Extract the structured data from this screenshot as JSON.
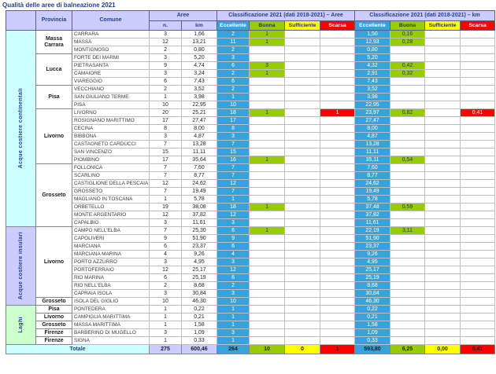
{
  "title": "Qualità delle aree di balneazione 2021",
  "colors": {
    "eccellente": "#35A3DC",
    "buona": "#99CC00",
    "sufficiente": "#FFFF00",
    "scarsa": "#FF0000",
    "header_bg": "#CCCCFF",
    "continental_bg": "#CCFFFF",
    "insular_bg": "#CCCCFF",
    "laghi_bg": "#CCFFCC",
    "totale_label_bg": "#CCFFFF",
    "navy_text": "#24418C"
  },
  "table": {
    "headers": {
      "provincia": "Provincia",
      "comune": "Comune",
      "aree_group": "Aree",
      "aree_sub": [
        "n.",
        "km"
      ],
      "class_aree_group": "Classificazione 2021 (dati 2018-2021) – Aree",
      "class_km_group": "Classificazione 2021 (dati 2018-2021) – km",
      "class_sub": [
        "Eccellente",
        "Buona",
        "Sufficiente",
        "Scarsa"
      ]
    },
    "sections": [
      {
        "name": "Acque costiere continentali",
        "bg": "#CCFFFF",
        "provinces": [
          {
            "name": "Massa Carrara",
            "rows": [
              {
                "comune": "CARRARA",
                "n": "3",
                "km": "1,66",
                "aree": [
                  "2",
                  "1",
                  "",
                  ""
                ],
                "km_class": [
                  "1,50",
                  "0,16",
                  "",
                  ""
                ]
              },
              {
                "comune": "MASSA",
                "n": "12",
                "km": "13,21",
                "aree": [
                  "11",
                  "1",
                  "",
                  ""
                ],
                "km_class": [
                  "12,93",
                  "0,28",
                  "",
                  ""
                ]
              },
              {
                "comune": "MONTIGNOSO",
                "n": "2",
                "km": "0,80",
                "aree": [
                  "2",
                  "",
                  "",
                  ""
                ],
                "km_class": [
                  "0,80",
                  "",
                  "",
                  ""
                ]
              }
            ]
          },
          {
            "name": "Lucca",
            "rows": [
              {
                "comune": "FORTE DEI MARMI",
                "n": "3",
                "km": "5,20",
                "aree": [
                  "3",
                  "",
                  "",
                  ""
                ],
                "km_class": [
                  "5,20",
                  "",
                  "",
                  ""
                ]
              },
              {
                "comune": "PIETRASANTA",
                "n": "9",
                "km": "4,74",
                "aree": [
                  "6",
                  "3",
                  "",
                  ""
                ],
                "km_class": [
                  "4,32",
                  "0,42",
                  "",
                  ""
                ]
              },
              {
                "comune": "CAMAIORE",
                "n": "3",
                "km": "3,24",
                "aree": [
                  "2",
                  "1",
                  "",
                  ""
                ],
                "km_class": [
                  "2,91",
                  "0,32",
                  "",
                  ""
                ]
              },
              {
                "comune": "VIAREGGIO",
                "n": "6",
                "km": "7,43",
                "aree": [
                  "6",
                  "",
                  "",
                  ""
                ],
                "km_class": [
                  "7,43",
                  "",
                  "",
                  ""
                ]
              }
            ]
          },
          {
            "name": "Pisa",
            "rows": [
              {
                "comune": "VECCHIANO",
                "n": "2",
                "km": "3,52",
                "aree": [
                  "2",
                  "",
                  "",
                  ""
                ],
                "km_class": [
                  "3,52",
                  "",
                  "",
                  ""
                ]
              },
              {
                "comune": "SAN GIULIANO TERME",
                "n": "1",
                "km": "3,98",
                "aree": [
                  "1",
                  "",
                  "",
                  ""
                ],
                "km_class": [
                  "3,98",
                  "",
                  "",
                  ""
                ]
              },
              {
                "comune": "PISA",
                "n": "10",
                "km": "22,95",
                "aree": [
                  "10",
                  "",
                  "",
                  ""
                ],
                "km_class": [
                  "22,95",
                  "",
                  "",
                  ""
                ]
              }
            ]
          },
          {
            "name": "Livorno",
            "rows": [
              {
                "comune": "LIVORNO",
                "n": "20",
                "km": "25,21",
                "aree": [
                  "18",
                  "1",
                  "",
                  "1"
                ],
                "km_class": [
                  "23,97",
                  "0,82",
                  "",
                  "0,41"
                ]
              },
              {
                "comune": "ROSIGNANO MARITTIMO",
                "n": "17",
                "km": "27,47",
                "aree": [
                  "17",
                  "",
                  "",
                  ""
                ],
                "km_class": [
                  "27,47",
                  "",
                  "",
                  ""
                ]
              },
              {
                "comune": "CECINA",
                "n": "8",
                "km": "8,00",
                "aree": [
                  "8",
                  "",
                  "",
                  ""
                ],
                "km_class": [
                  "8,00",
                  "",
                  "",
                  ""
                ]
              },
              {
                "comune": "BIBBONA",
                "n": "3",
                "km": "4,87",
                "aree": [
                  "3",
                  "",
                  "",
                  ""
                ],
                "km_class": [
                  "4,87",
                  "",
                  "",
                  ""
                ]
              },
              {
                "comune": "CASTAGNETO CARDUCCI",
                "n": "7",
                "km": "13,28",
                "aree": [
                  "7",
                  "",
                  "",
                  ""
                ],
                "km_class": [
                  "13,28",
                  "",
                  "",
                  ""
                ]
              },
              {
                "comune": "SAN VINCENZO",
                "n": "15",
                "km": "11,11",
                "aree": [
                  "15",
                  "",
                  "",
                  ""
                ],
                "km_class": [
                  "11,11",
                  "",
                  "",
                  ""
                ]
              },
              {
                "comune": "PIOMBINO",
                "n": "17",
                "km": "35,64",
                "aree": [
                  "16",
                  "1",
                  "",
                  ""
                ],
                "km_class": [
                  "35,11",
                  "0,54",
                  "",
                  ""
                ]
              }
            ]
          },
          {
            "name": "Grosseto",
            "rows": [
              {
                "comune": "FOLLONICA",
                "n": "7",
                "km": "7,60",
                "aree": [
                  "7",
                  "",
                  "",
                  ""
                ],
                "km_class": [
                  "7,60",
                  "",
                  "",
                  ""
                ]
              },
              {
                "comune": "SCARLINO",
                "n": "7",
                "km": "8,77",
                "aree": [
                  "7",
                  "",
                  "",
                  ""
                ],
                "km_class": [
                  "8,77",
                  "",
                  "",
                  ""
                ]
              },
              {
                "comune": "CASTIGLIONE DELLA PESCAIA",
                "n": "12",
                "km": "24,62",
                "aree": [
                  "12",
                  "",
                  "",
                  ""
                ],
                "km_class": [
                  "24,62",
                  "",
                  "",
                  ""
                ]
              },
              {
                "comune": "GROSSETO",
                "n": "7",
                "km": "19,49",
                "aree": [
                  "7",
                  "",
                  "",
                  ""
                ],
                "km_class": [
                  "19,49",
                  "",
                  "",
                  ""
                ]
              },
              {
                "comune": "MAGLIANO IN TOSCANA",
                "n": "1",
                "km": "5,78",
                "aree": [
                  "1",
                  "",
                  "",
                  ""
                ],
                "km_class": [
                  "5,78",
                  "",
                  "",
                  ""
                ]
              },
              {
                "comune": "ORBETELLO",
                "n": "19",
                "km": "38,08",
                "aree": [
                  "18",
                  "1",
                  "",
                  ""
                ],
                "km_class": [
                  "37,48",
                  "0,59",
                  "",
                  ""
                ]
              },
              {
                "comune": "MONTE ARGENTARIO",
                "n": "12",
                "km": "37,82",
                "aree": [
                  "12",
                  "",
                  "",
                  ""
                ],
                "km_class": [
                  "37,82",
                  "",
                  "",
                  ""
                ]
              },
              {
                "comune": "CAPALBIO",
                "n": "3",
                "km": "11,61",
                "aree": [
                  "3",
                  "",
                  "",
                  ""
                ],
                "km_class": [
                  "11,61",
                  "",
                  "",
                  ""
                ]
              }
            ]
          }
        ]
      },
      {
        "name": "Acque costiere insulari",
        "bg": "#CCCCFF",
        "provinces": [
          {
            "name": "Livorno",
            "rows": [
              {
                "comune": "CAMPO NELL'ELBA",
                "n": "7",
                "km": "25,30",
                "aree": [
                  "6",
                  "1",
                  "",
                  ""
                ],
                "km_class": [
                  "22,19",
                  "3,11",
                  "",
                  ""
                ]
              },
              {
                "comune": "CAPOLIVERI",
                "n": "9",
                "km": "51,90",
                "aree": [
                  "9",
                  "",
                  "",
                  ""
                ],
                "km_class": [
                  "51,90",
                  "",
                  "",
                  ""
                ]
              },
              {
                "comune": "MARCIANA",
                "n": "6",
                "km": "23,37",
                "aree": [
                  "6",
                  "",
                  "",
                  ""
                ],
                "km_class": [
                  "23,37",
                  "",
                  "",
                  ""
                ]
              },
              {
                "comune": "MARCIANA MARINA",
                "n": "4",
                "km": "9,26",
                "aree": [
                  "4",
                  "",
                  "",
                  ""
                ],
                "km_class": [
                  "9,26",
                  "",
                  "",
                  ""
                ]
              },
              {
                "comune": "PORTO AZZURRO",
                "n": "3",
                "km": "4,95",
                "aree": [
                  "3",
                  "",
                  "",
                  ""
                ],
                "km_class": [
                  "4,95",
                  "",
                  "",
                  ""
                ]
              },
              {
                "comune": "PORTOFERRAIO",
                "n": "12",
                "km": "25,17",
                "aree": [
                  "12",
                  "",
                  "",
                  ""
                ],
                "km_class": [
                  "25,17",
                  "",
                  "",
                  ""
                ]
              },
              {
                "comune": "RIO MARINA",
                "n": "6",
                "km": "25,19",
                "aree": [
                  "6",
                  "",
                  "",
                  ""
                ],
                "km_class": [
                  "25,19",
                  "",
                  "",
                  ""
                ]
              },
              {
                "comune": "RIO NELL'ELBA",
                "n": "2",
                "km": "8,68",
                "aree": [
                  "2",
                  "",
                  "",
                  ""
                ],
                "km_class": [
                  "8,68",
                  "",
                  "",
                  ""
                ]
              },
              {
                "comune": "CAPRAIA ISOLA",
                "n": "3",
                "km": "30,84",
                "aree": [
                  "3",
                  "",
                  "",
                  ""
                ],
                "km_class": [
                  "30,84",
                  "",
                  "",
                  ""
                ]
              }
            ]
          },
          {
            "name": "Grosseto",
            "rows": [
              {
                "comune": "ISOLA DEL GIGLIO",
                "n": "10",
                "km": "46,30",
                "aree": [
                  "10",
                  "",
                  "",
                  ""
                ],
                "km_class": [
                  "46,30",
                  "",
                  "",
                  ""
                ]
              }
            ]
          }
        ]
      },
      {
        "name": "Laghi",
        "bg": "#CCFFCC",
        "provinces": [
          {
            "name": "Pisa",
            "rows": [
              {
                "comune": "PONTEDERA",
                "n": "1",
                "km": "0,22",
                "aree": [
                  "1",
                  "",
                  "",
                  ""
                ],
                "km_class": [
                  "0,22",
                  "",
                  "",
                  ""
                ]
              }
            ]
          },
          {
            "name": "Livorno",
            "rows": [
              {
                "comune": "CAMPIGLIA MARITTIMA",
                "n": "1",
                "km": "0,21",
                "aree": [
                  "1",
                  "",
                  "",
                  ""
                ],
                "km_class": [
                  "0,21",
                  "",
                  "",
                  ""
                ]
              }
            ]
          },
          {
            "name": "Grosseto",
            "rows": [
              {
                "comune": "MASSA MARITTIMA",
                "n": "1",
                "km": "1,58",
                "aree": [
                  "1",
                  "",
                  "",
                  ""
                ],
                "km_class": [
                  "1,58",
                  "",
                  "",
                  ""
                ]
              }
            ]
          },
          {
            "name": "Firenze",
            "rows": [
              {
                "comune": "BARBERINO DI MUGELLO",
                "n": "3",
                "km": "1,09",
                "aree": [
                  "3",
                  "",
                  "",
                  ""
                ],
                "km_class": [
                  "1,09",
                  "",
                  "",
                  ""
                ]
              }
            ]
          },
          {
            "name": "Firenze",
            "rows": [
              {
                "comune": "SIGNA",
                "n": "1",
                "km": "0,33",
                "aree": [
                  "1",
                  "",
                  "",
                  ""
                ],
                "km_class": [
                  "0,33",
                  "",
                  "",
                  ""
                ]
              }
            ]
          }
        ]
      }
    ],
    "total": {
      "label": "Totale",
      "n": "275",
      "km": "600,46",
      "aree": [
        "264",
        "10",
        "0",
        "1"
      ],
      "km_class": [
        "593,80",
        "6,25",
        "0,00",
        "0,41"
      ]
    }
  }
}
